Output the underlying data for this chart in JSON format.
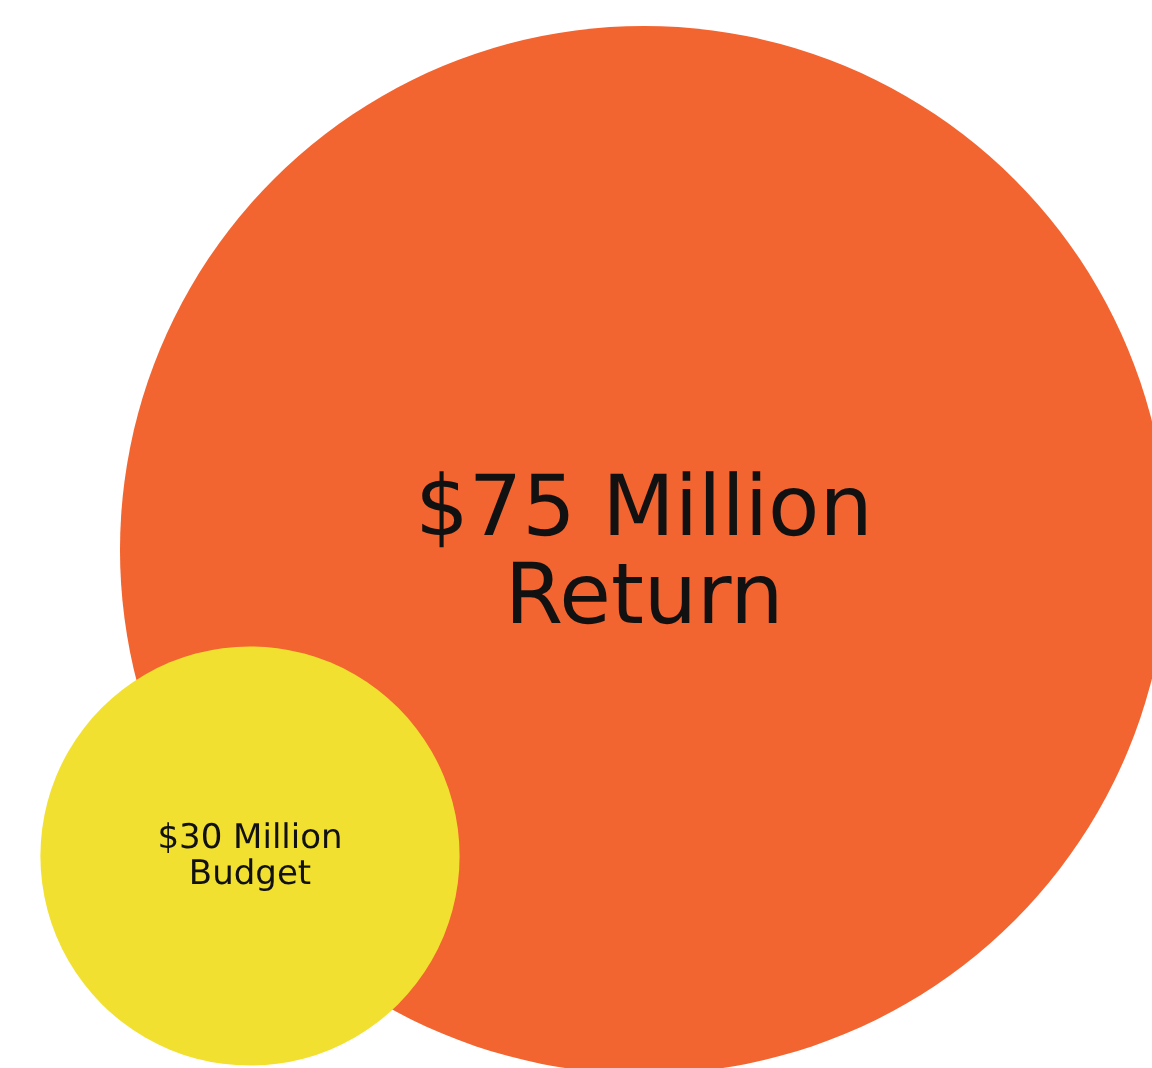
{
  "chart_data": {
    "type": "other",
    "categories": [
      "Return",
      "Budget"
    ],
    "values": [
      75,
      30
    ],
    "value_labels": [
      "$75 Million",
      "$30 Million"
    ],
    "colors": [
      "#f26430",
      "#f2e030"
    ]
  }
}
